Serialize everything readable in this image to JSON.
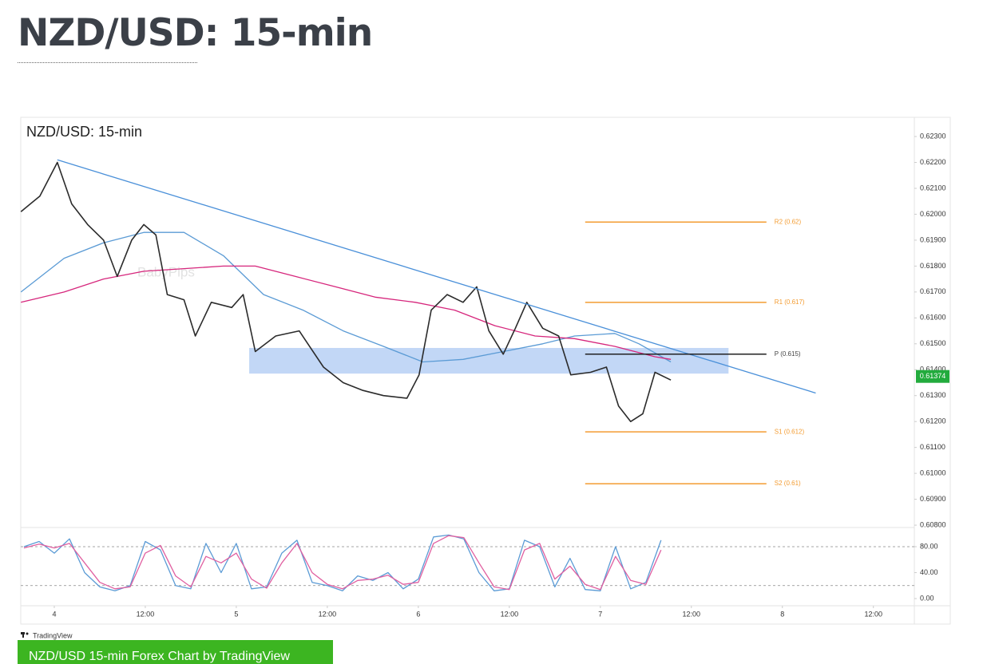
{
  "page": {
    "heading": "NZD/USD: 15-min",
    "footer_brand": "TradingView",
    "caption_button": "NZD/USD 15-min Forex Chart by TradingView"
  },
  "chart_data": [
    {
      "type": "line",
      "title": "NZD/USD: 15-min",
      "watermark": "BabyPips",
      "xlim": [
        -4.42,
        113.4
      ],
      "xticks": [
        {
          "value": 0,
          "label": "4"
        },
        {
          "value": 12,
          "label": "12:00"
        },
        {
          "value": 24,
          "label": "5"
        },
        {
          "value": 36,
          "label": "12:00"
        },
        {
          "value": 48,
          "label": "6"
        },
        {
          "value": 60,
          "label": "12:00"
        },
        {
          "value": 72,
          "label": "7"
        },
        {
          "value": 84,
          "label": "12:00"
        },
        {
          "value": 96,
          "label": "8"
        },
        {
          "value": 108,
          "label": "12:00"
        }
      ],
      "ylim": [
        0.60794,
        0.62371
      ],
      "yticks": [
        {
          "value": 0.608,
          "label": "0.60800"
        },
        {
          "value": 0.609,
          "label": "0.60900"
        },
        {
          "value": 0.61,
          "label": "0.61000"
        },
        {
          "value": 0.611,
          "label": "0.61100"
        },
        {
          "value": 0.612,
          "label": "0.61200"
        },
        {
          "value": 0.613,
          "label": "0.61300"
        },
        {
          "value": 0.614,
          "label": "0.61400"
        },
        {
          "value": 0.615,
          "label": "0.61500"
        },
        {
          "value": 0.616,
          "label": "0.61600"
        },
        {
          "value": 0.617,
          "label": "0.61700"
        },
        {
          "value": 0.618,
          "label": "0.61800"
        },
        {
          "value": 0.619,
          "label": "0.61900"
        },
        {
          "value": 0.62,
          "label": "0.62000"
        },
        {
          "value": 0.621,
          "label": "0.62100"
        },
        {
          "value": 0.622,
          "label": "0.62200"
        },
        {
          "value": 0.623,
          "label": "0.62300"
        }
      ],
      "zone": {
        "x": [
          25.7,
          88.9
        ],
        "values": [
          0.61385,
          0.61484
        ],
        "color": "#b7d0f4"
      },
      "series": [
        {
          "color": "#5b9bd5",
          "x": [
            -4.4,
            1.3,
            6.5,
            11.8,
            17.1,
            22.3,
            27.6,
            32.8,
            38.1,
            43.4,
            48.6,
            53.9,
            59.2,
            64.4,
            68.6,
            73.9,
            77.1,
            81.3
          ],
          "values": [
            0.617,
            0.6183,
            0.6189,
            0.6193,
            0.6193,
            0.6184,
            0.6169,
            0.6163,
            0.6155,
            0.6149,
            0.6143,
            0.6144,
            0.6147,
            0.615,
            0.6153,
            0.6154,
            0.615,
            0.6143
          ]
        },
        {
          "color": "#d6267c",
          "x": [
            -4.4,
            1.3,
            6.5,
            11.8,
            17.1,
            22.3,
            26.5,
            31.8,
            37.1,
            42.3,
            47.6,
            52.8,
            58.1,
            63.4,
            68.6,
            73.9,
            79.2,
            81.3
          ],
          "values": [
            0.6166,
            0.617,
            0.6175,
            0.6178,
            0.6179,
            0.618,
            0.618,
            0.6176,
            0.6172,
            0.6168,
            0.6166,
            0.6163,
            0.6157,
            0.6153,
            0.6152,
            0.6149,
            0.6145,
            0.6144
          ]
        },
        {
          "color": "#2b2b2b",
          "x": [
            -4.4,
            -1.9,
            0.4,
            2.3,
            4.4,
            6.5,
            8.3,
            10.2,
            11.8,
            13.4,
            14.9,
            17.1,
            18.6,
            20.7,
            23.4,
            24.9,
            26.5,
            29.2,
            32.3,
            35.5,
            38.1,
            40.7,
            43.4,
            46.5,
            48.1,
            49.7,
            51.8,
            53.9,
            55.7,
            57.3,
            59.2,
            60.8,
            62.3,
            64.4,
            66.5,
            68.1,
            70.7,
            72.8,
            74.4,
            76.0,
            77.6,
            79.2,
            81.3
          ],
          "values": [
            0.6201,
            0.6207,
            0.622,
            0.6204,
            0.6196,
            0.619,
            0.6176,
            0.619,
            0.6196,
            0.6192,
            0.6169,
            0.6167,
            0.6153,
            0.6166,
            0.6164,
            0.6169,
            0.6147,
            0.6153,
            0.6155,
            0.6141,
            0.6135,
            0.6132,
            0.613,
            0.6129,
            0.6138,
            0.6163,
            0.6169,
            0.6166,
            0.6172,
            0.6155,
            0.6146,
            0.6156,
            0.6166,
            0.6156,
            0.6153,
            0.6138,
            0.6139,
            0.6141,
            0.6126,
            0.612,
            0.6123,
            0.6139,
            0.6136
          ]
        }
      ],
      "trendline": {
        "x": [
          0.4,
          100.4
        ],
        "values": [
          0.6221,
          0.6131
        ],
        "color": "#4a90d9"
      },
      "levels": [
        {
          "label": "R2 (0.62)",
          "value": 0.6197,
          "x": [
            70,
            93.9
          ],
          "color": "#f39c32"
        },
        {
          "label": "R1 (0.617)",
          "value": 0.6166,
          "x": [
            70,
            93.9
          ],
          "color": "#f39c32"
        },
        {
          "label": "P (0.615)",
          "value": 0.6146,
          "x": [
            70,
            93.9
          ],
          "color": "#222222"
        },
        {
          "label": "S1 (0.612)",
          "value": 0.6116,
          "x": [
            70,
            93.9
          ],
          "color": "#f39c32"
        },
        {
          "label": "S2 (0.61)",
          "value": 0.6096,
          "x": [
            70,
            93.9
          ],
          "color": "#f39c32"
        }
      ],
      "last_price": {
        "value": 0.61374,
        "color": "#22ab3d"
      }
    },
    {
      "type": "line",
      "ylim": [
        -9.8,
        108.3
      ],
      "yticks": [
        {
          "value": 0,
          "label": "0.00"
        },
        {
          "value": 40,
          "label": "40.00"
        },
        {
          "value": 80,
          "label": "80.00"
        }
      ],
      "bands": [
        20,
        80
      ],
      "series": [
        {
          "color": "#5b9bd5",
          "x": [
            -4,
            -2,
            0,
            2,
            4,
            6,
            8,
            10,
            12,
            14,
            16,
            18,
            20,
            22,
            24,
            26,
            28,
            30,
            32,
            34,
            36,
            38,
            40,
            42,
            44,
            46,
            48,
            50,
            52,
            54,
            56,
            58,
            60,
            62,
            64,
            66,
            68,
            70,
            72,
            74,
            76,
            78,
            80
          ],
          "values": [
            80,
            88,
            70,
            92,
            40,
            18,
            12,
            20,
            88,
            75,
            20,
            15,
            85,
            40,
            85,
            15,
            18,
            70,
            90,
            25,
            20,
            12,
            35,
            28,
            40,
            15,
            30,
            95,
            98,
            92,
            40,
            12,
            15,
            90,
            80,
            18,
            62,
            14,
            12,
            80,
            15,
            25,
            90
          ]
        },
        {
          "color": "#e05fa0",
          "x": [
            -4,
            -2,
            0,
            2,
            4,
            6,
            8,
            10,
            12,
            14,
            16,
            18,
            20,
            22,
            24,
            26,
            28,
            30,
            32,
            34,
            36,
            38,
            40,
            42,
            44,
            46,
            48,
            50,
            52,
            54,
            56,
            58,
            60,
            62,
            64,
            66,
            68,
            70,
            72,
            74,
            76,
            78,
            80
          ],
          "values": [
            78,
            84,
            78,
            85,
            55,
            25,
            15,
            18,
            70,
            82,
            35,
            18,
            65,
            55,
            70,
            30,
            16,
            55,
            85,
            40,
            22,
            15,
            28,
            30,
            36,
            22,
            25,
            85,
            97,
            94,
            55,
            18,
            14,
            75,
            85,
            30,
            50,
            22,
            14,
            65,
            28,
            22,
            75
          ]
        }
      ]
    }
  ]
}
